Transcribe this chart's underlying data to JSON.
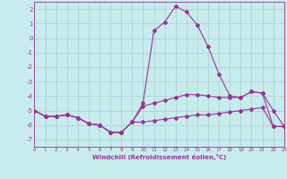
{
  "x": [
    0,
    1,
    2,
    3,
    4,
    5,
    6,
    7,
    8,
    9,
    10,
    11,
    12,
    13,
    14,
    15,
    16,
    17,
    18,
    19,
    20,
    21,
    22,
    23
  ],
  "line1": [
    -5.0,
    -5.4,
    -5.4,
    -5.3,
    -5.5,
    -5.9,
    -6.0,
    -6.5,
    -6.5,
    -5.8,
    -4.5,
    0.5,
    1.1,
    2.2,
    1.8,
    0.9,
    -0.6,
    -2.5,
    -4.0,
    -4.1,
    -3.7,
    -3.8,
    -5.0,
    -6.1
  ],
  "line2": [
    -5.0,
    -5.4,
    -5.4,
    -5.3,
    -5.5,
    -5.9,
    -6.0,
    -6.5,
    -6.5,
    -5.8,
    -4.7,
    -4.5,
    -4.3,
    -4.1,
    -3.9,
    -3.9,
    -4.0,
    -4.1,
    -4.1,
    -4.1,
    -3.7,
    -3.8,
    -6.1,
    -6.1
  ],
  "line3": [
    -5.0,
    -5.4,
    -5.4,
    -5.3,
    -5.5,
    -5.9,
    -6.0,
    -6.5,
    -6.5,
    -5.8,
    -5.8,
    -5.7,
    -5.6,
    -5.5,
    -5.4,
    -5.3,
    -5.3,
    -5.2,
    -5.1,
    -5.0,
    -4.9,
    -4.8,
    -6.1,
    -6.1
  ],
  "bg_color": "#c8ecec",
  "grid_color": "#aad4d4",
  "line_color": "#993399",
  "xlabel": "Windchill (Refroidissement éolien,°C)",
  "ylim": [
    -7.5,
    2.5
  ],
  "xlim": [
    0,
    23
  ],
  "yticks": [
    2,
    1,
    0,
    -1,
    -2,
    -3,
    -4,
    -5,
    -6,
    -7
  ],
  "xticks": [
    0,
    1,
    2,
    3,
    4,
    5,
    6,
    7,
    8,
    9,
    10,
    11,
    12,
    13,
    14,
    15,
    16,
    17,
    18,
    19,
    20,
    21,
    22,
    23
  ]
}
